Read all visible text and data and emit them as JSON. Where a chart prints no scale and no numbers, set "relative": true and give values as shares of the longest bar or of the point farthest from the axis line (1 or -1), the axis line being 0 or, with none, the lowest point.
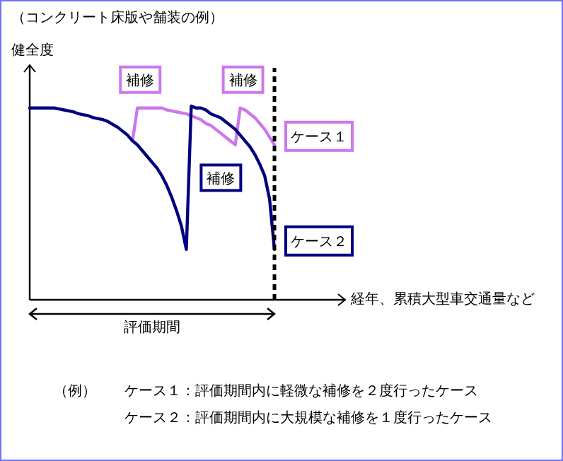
{
  "chart_data": {
    "type": "line",
    "relative": true,
    "title": "（コンクリート床版や舗装の例）",
    "ylabel": "健全度",
    "xlabel": "経年、累積大型車交通量など",
    "categories": [
      null,
      null,
      null,
      null,
      null,
      null,
      null,
      null,
      null,
      null,
      null,
      null,
      null,
      null,
      null,
      null,
      null,
      null,
      null,
      null,
      null,
      null,
      null,
      null,
      null,
      null,
      null,
      null,
      null,
      null,
      null,
      null,
      null,
      null,
      null,
      null,
      null,
      null,
      null,
      null,
      null,
      null,
      null,
      null,
      null,
      null,
      null,
      null,
      null,
      null,
      null,
      null,
      null,
      null,
      null,
      null,
      null,
      null,
      null,
      null,
      null,
      null,
      null,
      null
    ],
    "series": [
      {
        "name": "ケース１",
        "color": "#cc77ee",
        "values": [
          null,
          null,
          null,
          null,
          null,
          null,
          null,
          null,
          null,
          null,
          null,
          null,
          null,
          null,
          null,
          null,
          null,
          null,
          null,
          null,
          null,
          0.82,
          0.99,
          0.99,
          0.99,
          0.99,
          0.99,
          0.99,
          0.98,
          0.975,
          0.97,
          0.965,
          0.96,
          0.95,
          0.94,
          0.93,
          0.91,
          0.9,
          0.88,
          0.86,
          0.84,
          0.82,
          0.8,
          0.99,
          0.98,
          0.96,
          0.94,
          0.91,
          0.88,
          0.84,
          0.8,
          null,
          null,
          null,
          null,
          null,
          null,
          null,
          null,
          null,
          null,
          null,
          null,
          null
        ]
      },
      {
        "name": "ケース２",
        "color": "#000080",
        "values": [
          0.99,
          0.99,
          0.99,
          0.99,
          0.99,
          0.99,
          0.985,
          0.98,
          0.975,
          0.97,
          0.96,
          0.955,
          0.95,
          0.94,
          0.935,
          0.93,
          0.92,
          0.905,
          0.89,
          0.87,
          0.85,
          0.82,
          0.8,
          0.77,
          0.74,
          0.71,
          0.68,
          0.64,
          0.59,
          0.53,
          0.46,
          0.38,
          0.26,
          1.0,
          0.99,
          0.99,
          0.98,
          0.96,
          0.95,
          0.94,
          0.92,
          0.9,
          0.88,
          0.85,
          0.82,
          0.79,
          0.75,
          0.7,
          0.64,
          0.52,
          0.26,
          null,
          null,
          null,
          null,
          null,
          null,
          null,
          null,
          null,
          null,
          null,
          null,
          null
        ]
      }
    ],
    "annotations": [
      "補修",
      "補修",
      "補修",
      "評価期間",
      "（例）",
      "ケース１：評価期間内に軽微な補修を２度行ったケース",
      "ケース２：評価期間内に大規模な補修を１度行ったケース"
    ]
  }
}
